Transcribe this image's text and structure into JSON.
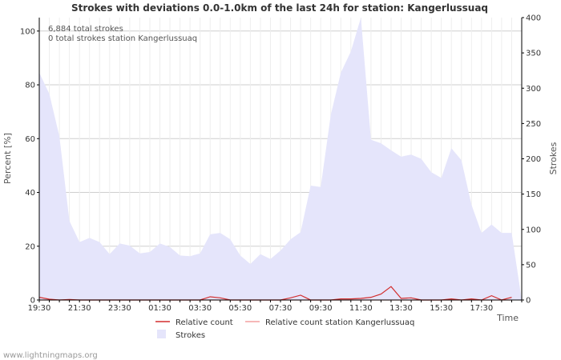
{
  "chart_data": {
    "type": "area",
    "title": "Strokes with deviations 0.0-1.0km of the last 24h for station: Kangerlussuaq",
    "xlabel": "Time",
    "ylabel_left": "Percent   [%]",
    "ylabel_right": "Strokes",
    "ylim_left": [
      0,
      105
    ],
    "ylim_right": [
      0,
      400
    ],
    "yticks_left": [
      0,
      20,
      40,
      60,
      80,
      100
    ],
    "yticks_right": [
      0,
      50,
      100,
      150,
      200,
      250,
      300,
      350,
      400
    ],
    "x_tick_labels": [
      "19:30",
      "21:30",
      "23:30",
      "01:30",
      "03:30",
      "05:30",
      "07:30",
      "09:30",
      "11:30",
      "13:30",
      "15:30",
      "17:30"
    ],
    "x_slots": 48,
    "grid": true,
    "annotations": [
      "6,884 total strokes",
      "0 total strokes station Kangerlussuaq"
    ],
    "series": [
      {
        "name": "Strokes",
        "axis": "right",
        "color": "#e5e5fb",
        "values": [
          322,
          292,
          232,
          112,
          82,
          88,
          82,
          65,
          80,
          77,
          66,
          68,
          80,
          75,
          63,
          62,
          66,
          93,
          95,
          86,
          63,
          51,
          65,
          58,
          70,
          86,
          96,
          162,
          160,
          262,
          322,
          352,
          400,
          227,
          222,
          212,
          203,
          206,
          200,
          181,
          173,
          215,
          198,
          135,
          95,
          107,
          95,
          95
        ]
      },
      {
        "name": "Relative count",
        "axis": "left",
        "color": "#d32f2f",
        "values": [
          1,
          0.3,
          0,
          0.2,
          0,
          0,
          0,
          0,
          0,
          0,
          0,
          0,
          0,
          0,
          0,
          0,
          0,
          1.2,
          0.8,
          0,
          0,
          0,
          0,
          0,
          0,
          0.8,
          1.8,
          0,
          0,
          0,
          0.4,
          0.4,
          0.6,
          1,
          2.2,
          5,
          0.6,
          0.8,
          0,
          0,
          0,
          0.4,
          0,
          0.4,
          0,
          1.6,
          0,
          1
        ]
      },
      {
        "name": "Relative count station Kangerlussuaq",
        "axis": "left",
        "color": "#f4a0a0",
        "values": [
          0,
          0,
          0,
          0,
          0,
          0,
          0,
          0,
          0,
          0,
          0,
          0,
          0,
          0,
          0,
          0,
          0,
          0,
          0,
          0,
          0,
          0,
          0,
          0,
          0,
          0,
          0,
          0,
          0,
          0,
          0,
          0,
          0,
          0,
          0,
          0,
          0,
          0,
          0,
          0,
          0,
          0,
          0,
          0,
          0,
          0,
          0,
          0
        ]
      }
    ],
    "legend": [
      "Relative count",
      "Relative count station Kangerlussuaq",
      "Strokes"
    ],
    "legend_position": "bottom-center",
    "source": "www.lightningmaps.org"
  }
}
